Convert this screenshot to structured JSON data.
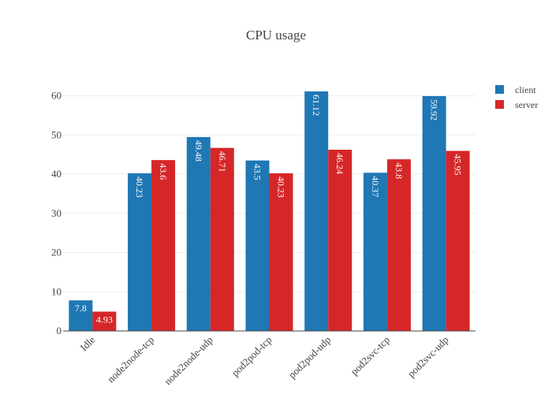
{
  "chart_data": {
    "type": "bar",
    "title": "CPU usage",
    "xlabel": "",
    "ylabel": "",
    "categories": [
      "Idle",
      "node2node-tcp",
      "node2node-udp",
      "pod2pod-tcp",
      "pod2pod-udp",
      "pod2svc-tcp",
      "pod2svc-udp"
    ],
    "series": [
      {
        "name": "client",
        "color": "#1f77b4",
        "values": [
          7.8,
          40.23,
          49.48,
          43.5,
          61.12,
          40.37,
          59.92
        ],
        "labels": [
          "7.8",
          "40.23",
          "49.48",
          "43.5",
          "61.12",
          "40.37",
          "59.92"
        ]
      },
      {
        "name": "server",
        "color": "#d62728",
        "values": [
          4.93,
          43.6,
          46.71,
          40.23,
          46.24,
          43.8,
          45.95
        ],
        "labels": [
          "4.93",
          "43.6",
          "46.71",
          "40.23",
          "46.24",
          "43.8",
          "45.95"
        ]
      }
    ],
    "yticks": [
      0,
      10,
      20,
      30,
      40,
      50,
      60
    ],
    "ylim": [
      0,
      61.12
    ],
    "grid": true,
    "legend": "top-right"
  }
}
